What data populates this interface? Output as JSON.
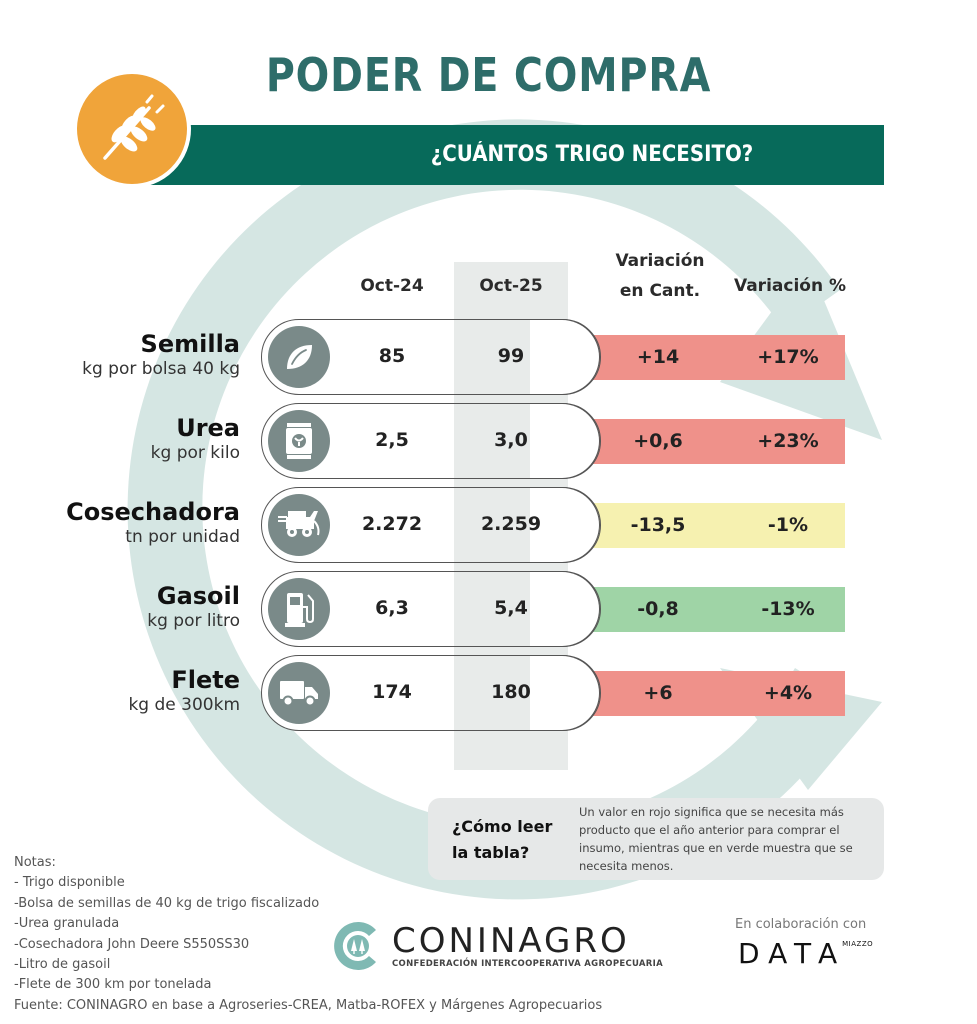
{
  "header": {
    "title": "PODER DE COMPRA",
    "subtitle": "¿CUÁNTOS TRIGO NECESITO?",
    "badge_icon": "wheat-icon"
  },
  "colors": {
    "title": "#2e6d6a",
    "banner": "#076a5a",
    "badge": "#f0a43a",
    "background_c": "#d5e6e3",
    "column_highlight": "#e8ebea",
    "icon_circle": "#7a8a89",
    "red": "#ef918a",
    "yellow": "#f6f1b0",
    "green": "#9fd4a6"
  },
  "table": {
    "headers": {
      "oct24": "Oct-24",
      "oct25": "Oct-25",
      "var_cant_line1": "Variación",
      "var_cant_line2": "en Cant.",
      "var_pct": "Variación %"
    },
    "rows": [
      {
        "name": "Semilla",
        "unit": "kg por bolsa 40 kg",
        "icon": "leaf-icon",
        "oct24": "85",
        "oct25": "99",
        "var_cant": "+14",
        "var_pct": "+17%",
        "status": "red"
      },
      {
        "name": "Urea",
        "unit": "kg por kilo",
        "icon": "fertilizer-bag-icon",
        "oct24": "2,5",
        "oct25": "3,0",
        "var_cant": "+0,6",
        "var_pct": "+23%",
        "status": "red"
      },
      {
        "name": "Cosechadora",
        "unit": "tn por unidad",
        "icon": "harvester-icon",
        "oct24": "2.272",
        "oct25": "2.259",
        "var_cant": "-13,5",
        "var_pct": "-1%",
        "status": "yellow"
      },
      {
        "name": "Gasoil",
        "unit": "kg por litro",
        "icon": "fuel-pump-icon",
        "oct24": "6,3",
        "oct25": "5,4",
        "var_cant": "-0,8",
        "var_pct": "-13%",
        "status": "green"
      },
      {
        "name": "Flete",
        "unit": "kg de 300km",
        "icon": "truck-icon",
        "oct24": "174",
        "oct25": "180",
        "var_cant": "+6",
        "var_pct": "+4%",
        "status": "red"
      }
    ]
  },
  "howto": {
    "question": "¿Cómo leer la tabla?",
    "answer": "Un valor en rojo significa que se necesita más producto que el año anterior para comprar el insumo, mientras que en verde muestra que se necesita menos."
  },
  "notes": [
    "Notas:",
    "- Trigo disponible",
    "-Bolsa de semillas de 40 kg de trigo fiscalizado",
    "-Urea granulada",
    "-Cosechadora John Deere S550SS30",
    "-Litro de gasoil",
    "-Flete de 300 km por tonelada",
    "Fuente: CONINAGRO en base a Agroseries-CREA, Matba-ROFEX y Márgenes Agropecuarios"
  ],
  "footer": {
    "logo_name": "CONINAGRO",
    "logo_sub": "CONFEDERACIÓN INTERCOOPERATIVA AGROPECUARIA",
    "collab_label": "En colaboración con",
    "partner_word": "DATA",
    "partner_sup": "MIAZZO"
  }
}
